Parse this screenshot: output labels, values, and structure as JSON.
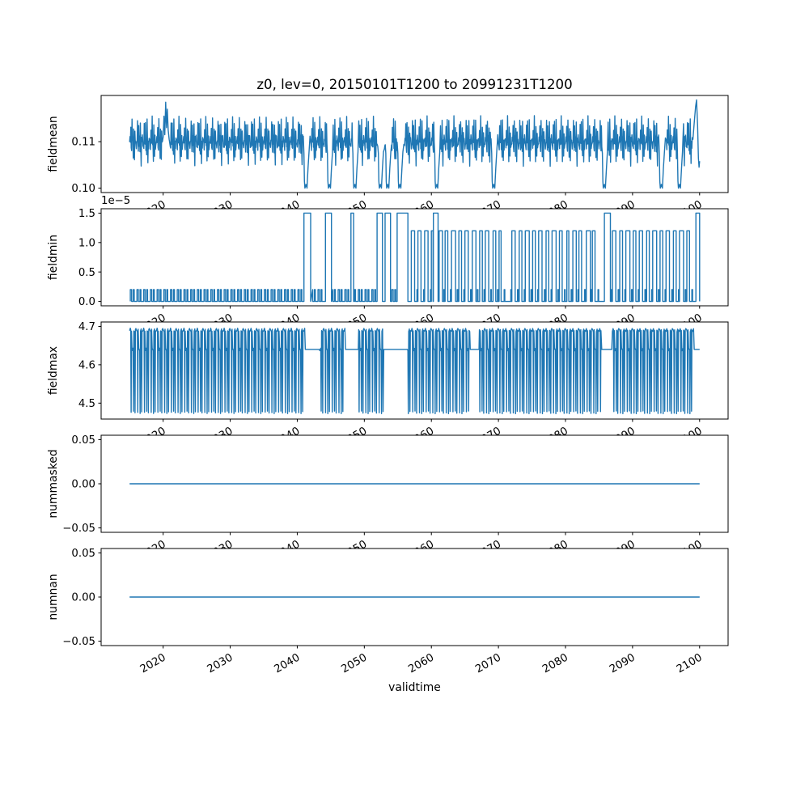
{
  "chart_data": {
    "type": "line",
    "title": "z0, lev=0, 20150101T1200 to 20991231T1200",
    "xlabel": "validtime",
    "line_color": "#1f77b4",
    "grid": false,
    "legend": "none",
    "x_data_range": [
      2015,
      2100
    ],
    "xlim": [
      2010.75,
      2104.25
    ],
    "xticks": [
      {
        "v": 2020,
        "label": "2020"
      },
      {
        "v": 2030,
        "label": "2030"
      },
      {
        "v": 2040,
        "label": "2040"
      },
      {
        "v": 2050,
        "label": "2050"
      },
      {
        "v": 2060,
        "label": "2060"
      },
      {
        "v": 2070,
        "label": "2070"
      },
      {
        "v": 2080,
        "label": "2080"
      },
      {
        "v": 2090,
        "label": "2090"
      },
      {
        "v": 2100,
        "label": "2100"
      }
    ],
    "panels": [
      {
        "ylabel": "fieldmean",
        "ylim": [
          0.09905,
          0.11995
        ],
        "yticks": [
          {
            "v": 0.1,
            "label": "0.10"
          },
          {
            "v": 0.11,
            "label": "0.11"
          }
        ],
        "ops": [
          {
            "op": "annual",
            "from": 2015,
            "to": 2100,
            "pattern": [
              [
                0.0,
                0.1095
              ],
              [
                0.06,
                0.11
              ],
              [
                0.12,
                0.1092
              ],
              [
                0.18,
                0.1135
              ],
              [
                0.24,
                0.1098
              ],
              [
                0.3,
                0.1088
              ],
              [
                0.36,
                0.1145
              ],
              [
                0.42,
                0.1092
              ],
              [
                0.48,
                0.1103
              ],
              [
                0.54,
                0.1068
              ],
              [
                0.6,
                0.1138
              ],
              [
                0.66,
                0.1095
              ],
              [
                0.72,
                0.1058
              ],
              [
                0.78,
                0.1112
              ],
              [
                0.84,
                0.1092
              ],
              [
                0.9,
                0.1104
              ]
            ],
            "jitter": [
              0.0011,
              17.3
            ],
            "skip": [
              [
                2019.95,
                2021.05
              ],
              [
                2040.95,
                2041.85
              ],
              [
                2044.45,
                2045.35
              ],
              [
                2048.25,
                2049.15
              ],
              [
                2052.05,
                2052.95
              ],
              [
                2053.15,
                2054.05
              ],
              [
                2054.95,
                2055.85
              ],
              [
                2060.45,
                2061.35
              ],
              [
                2068.95,
                2069.85
              ],
              [
                2085.45,
                2086.35
              ],
              [
                2093.95,
                2094.85
              ],
              [
                2096.65,
                2097.55
              ],
              [
                2098.95,
                2100.25
              ]
            ]
          },
          {
            "op": "annual",
            "years": [
              2041.0,
              2044.5,
              2048.3,
              2052.1,
              2053.2,
              2055.0,
              2060.5,
              2069.0,
              2085.5,
              2094.0,
              2096.7
            ],
            "pattern": [
              [
                0.0,
                0.1075
              ],
              [
                0.07,
                0.1015
              ],
              [
                0.14,
                0.1
              ],
              [
                0.3,
                0.1008
              ],
              [
                0.45,
                0.1
              ],
              [
                0.6,
                0.1042
              ],
              [
                0.75,
                0.1078
              ]
            ]
          },
          {
            "op": "poly",
            "pts": [
              [
                2020.0,
                0.111
              ],
              [
                2020.12,
                0.1155
              ],
              [
                2020.25,
                0.1115
              ],
              [
                2020.38,
                0.1185
              ],
              [
                2020.5,
                0.113
              ],
              [
                2020.62,
                0.117
              ],
              [
                2020.75,
                0.1125
              ],
              [
                2020.9,
                0.1105
              ],
              [
                2021.0,
                0.1095
              ]
            ]
          },
          {
            "op": "poly",
            "pts": [
              [
                2099.0,
                0.1105
              ],
              [
                2099.2,
                0.114
              ],
              [
                2099.4,
                0.1175
              ],
              [
                2099.55,
                0.119
              ],
              [
                2099.7,
                0.1135
              ],
              [
                2099.82,
                0.1065
              ],
              [
                2099.92,
                0.1045
              ],
              [
                2100.0,
                0.1058
              ]
            ]
          }
        ]
      },
      {
        "ylabel": "fieldmin",
        "offset_text": "1e−5",
        "y_unit": "1e-5",
        "ylim": [
          -0.075,
          1.575
        ],
        "yticks": [
          {
            "v": 0.0,
            "label": "0.0"
          },
          {
            "v": 0.5,
            "label": "0.5"
          },
          {
            "v": 1.0,
            "label": "1.0"
          },
          {
            "v": 1.5,
            "label": "1.5"
          }
        ],
        "ops": [
          {
            "op": "annual",
            "from": 2015,
            "to": 2057,
            "pattern": [
              [
                0.1,
                0
              ],
              [
                0.1,
                0.2
              ],
              [
                0.3,
                0.2
              ],
              [
                0.3,
                0
              ],
              [
                0.55,
                0
              ],
              [
                0.55,
                0.2
              ],
              [
                0.68,
                0.2
              ],
              [
                0.68,
                0
              ]
            ],
            "skip": [
              [
                2040.9,
                2042.1
              ],
              [
                2044.1,
                2045.2
              ],
              [
                2047.9,
                2048.5
              ],
              [
                2051.8,
                2052.8
              ],
              [
                2053.0,
                2054.0
              ],
              [
                2054.8,
                2056.75
              ]
            ]
          },
          {
            "op": "annual",
            "from": 2057,
            "to": 2099,
            "pattern": [
              [
                0.85,
                0
              ],
              [
                0.85,
                0.2
              ],
              [
                0.95,
                0.2
              ],
              [
                0.95,
                0
              ]
            ],
            "skip": [
              [
                2060.25,
                2061.05
              ],
              [
                2085.7,
                2086.8
              ]
            ]
          },
          {
            "op": "pulses",
            "base": 0,
            "list": [
              [
                2041.0,
                1.0,
                1.5
              ],
              [
                2044.2,
                0.9,
                1.5
              ],
              [
                2048.0,
                0.4,
                1.5
              ],
              [
                2051.9,
                0.8,
                1.5
              ],
              [
                2053.1,
                0.8,
                1.5
              ],
              [
                2054.9,
                1.6,
                1.5
              ],
              [
                2060.3,
                0.7,
                1.5
              ],
              [
                2085.8,
                0.9,
                1.5
              ],
              [
                2099.45,
                0.55,
                1.5
              ]
            ]
          },
          {
            "op": "pulses",
            "base": 0,
            "list": [
              [
                2057.0,
                0.5,
                1.2
              ],
              [
                2058.0,
                0.45,
                1.2
              ],
              [
                2059.0,
                0.5,
                1.2
              ],
              [
                2060.0,
                0.25,
                1.2
              ],
              [
                2061.15,
                0.5,
                1.2
              ],
              [
                2062.05,
                0.4,
                1.2
              ],
              [
                2063.0,
                0.6,
                1.2
              ],
              [
                2064.1,
                0.4,
                1.2
              ],
              [
                2065.0,
                0.5,
                1.2
              ],
              [
                2066.1,
                0.55,
                1.2
              ],
              [
                2067.2,
                0.4,
                1.2
              ],
              [
                2068.05,
                0.5,
                1.2
              ],
              [
                2069.2,
                0.4,
                1.2
              ],
              [
                2070.1,
                0.3,
                1.2
              ],
              [
                2072.0,
                0.5,
                1.2
              ],
              [
                2073.1,
                0.4,
                1.2
              ],
              [
                2074.0,
                0.6,
                1.2
              ],
              [
                2075.1,
                0.4,
                1.2
              ],
              [
                2076.0,
                0.5,
                1.2
              ],
              [
                2077.1,
                0.4,
                1.2
              ],
              [
                2078.0,
                0.6,
                1.2
              ],
              [
                2079.1,
                0.4,
                1.2
              ],
              [
                2080.2,
                0.3,
                1.2
              ],
              [
                2081.1,
                0.5,
                1.2
              ],
              [
                2082.0,
                0.4,
                1.2
              ],
              [
                2083.1,
                0.6,
                1.2
              ],
              [
                2084.0,
                0.4,
                1.2
              ],
              [
                2087.0,
                0.5,
                1.2
              ],
              [
                2088.1,
                0.4,
                1.2
              ],
              [
                2089.0,
                0.6,
                1.2
              ],
              [
                2090.1,
                0.4,
                1.2
              ],
              [
                2091.0,
                0.5,
                1.2
              ],
              [
                2092.1,
                0.4,
                1.2
              ],
              [
                2093.0,
                0.6,
                1.2
              ],
              [
                2094.1,
                0.4,
                1.2
              ],
              [
                2095.0,
                0.5,
                1.2
              ],
              [
                2096.1,
                0.4,
                1.2
              ],
              [
                2097.0,
                0.6,
                1.2
              ],
              [
                2098.1,
                0.4,
                1.2
              ]
            ]
          }
        ]
      },
      {
        "ylabel": "fieldmax",
        "ylim": [
          4.4585,
          4.7115
        ],
        "yticks": [
          {
            "v": 4.5,
            "label": "4.5"
          },
          {
            "v": 4.6,
            "label": "4.6"
          },
          {
            "v": 4.7,
            "label": "4.7"
          }
        ],
        "ops": [
          {
            "op": "annual",
            "from": 2015,
            "to": 2100,
            "pattern": [
              [
                0.0,
                4.69
              ],
              [
                0.1,
                4.692
              ],
              [
                0.16,
                4.688
              ],
              [
                0.22,
                4.476
              ],
              [
                0.28,
                4.69
              ],
              [
                0.36,
                4.64
              ],
              [
                0.5,
                4.64
              ],
              [
                0.56,
                4.476
              ],
              [
                0.62,
                4.688
              ],
              [
                0.72,
                4.69
              ],
              [
                0.8,
                4.476
              ],
              [
                0.86,
                4.69
              ],
              [
                0.94,
                4.691
              ]
            ],
            "jitter": [
              0.0035,
              15.7
            ],
            "skip": [
              [
                2041.15,
                2043.35
              ],
              [
                2047.15,
                2049.15
              ],
              [
                2052.85,
                2056.45
              ],
              [
                2065.75,
                2067.15
              ],
              [
                2085.35,
                2086.95
              ],
              [
                2099.15,
                2100.25
              ]
            ]
          },
          {
            "op": "poly",
            "pts": [
              [
                2041.2,
                4.64
              ],
              [
                2043.3,
                4.64
              ]
            ]
          },
          {
            "op": "poly",
            "pts": [
              [
                2047.2,
                4.64
              ],
              [
                2049.1,
                4.64
              ]
            ]
          },
          {
            "op": "poly",
            "pts": [
              [
                2052.9,
                4.64
              ],
              [
                2056.4,
                4.64
              ]
            ]
          },
          {
            "op": "poly",
            "pts": [
              [
                2065.8,
                4.64
              ],
              [
                2067.1,
                4.64
              ]
            ]
          },
          {
            "op": "poly",
            "pts": [
              [
                2085.4,
                4.64
              ],
              [
                2086.9,
                4.64
              ]
            ]
          },
          {
            "op": "poly",
            "pts": [
              [
                2099.2,
                4.64
              ],
              [
                2100.0,
                4.64
              ]
            ]
          }
        ]
      },
      {
        "ylabel": "nummasked",
        "ylim": [
          -0.055,
          0.055
        ],
        "yticks": [
          {
            "v": -0.05,
            "label": "−0.05"
          },
          {
            "v": 0.0,
            "label": "0.00"
          },
          {
            "v": 0.05,
            "label": "0.05"
          }
        ],
        "ops": [
          {
            "op": "poly",
            "pts": [
              [
                2015.0,
                0.0
              ],
              [
                2100.0,
                0.0
              ]
            ]
          }
        ]
      },
      {
        "ylabel": "numnan",
        "ylim": [
          -0.055,
          0.055
        ],
        "yticks": [
          {
            "v": -0.05,
            "label": "−0.05"
          },
          {
            "v": 0.0,
            "label": "0.00"
          },
          {
            "v": 0.05,
            "label": "0.05"
          }
        ],
        "ops": [
          {
            "op": "poly",
            "pts": [
              [
                2015.0,
                0.0
              ],
              [
                2100.0,
                0.0
              ]
            ]
          }
        ]
      }
    ]
  }
}
